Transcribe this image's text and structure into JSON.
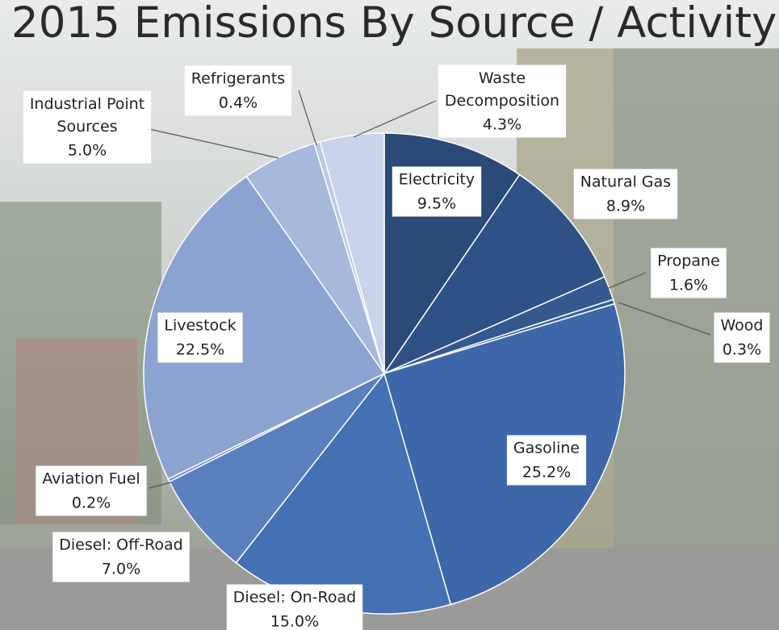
{
  "chart_data": {
    "type": "pie",
    "title": "2015 Emissions By Source / Activity",
    "categories": [
      "Electricity",
      "Natural Gas",
      "Propane",
      "Wood",
      "Gasoline",
      "Diesel: On-Road",
      "Diesel: Off-Road",
      "Aviation Fuel",
      "Livestock",
      "Industrial Point Sources",
      "Refrigerants",
      "Waste Decomposition"
    ],
    "values": [
      9.5,
      8.9,
      1.6,
      0.3,
      25.2,
      15.0,
      7.0,
      0.2,
      22.5,
      5.0,
      0.4,
      4.3
    ],
    "value_labels": [
      "9.5%",
      "8.9%",
      "1.6%",
      "0.3%",
      "25.2%",
      "15.0%",
      "7.0%",
      "0.2%",
      "22.5%",
      "5.0%",
      "0.4%",
      "4.3%"
    ],
    "colors": [
      "#2a4a78",
      "#2f5286",
      "#34598f",
      "#375e96",
      "#3d67a8",
      "#4470b4",
      "#5a80bf",
      "#6c8dc6",
      "#8aa3d1",
      "#a6b8dc",
      "#bcc9e4",
      "#c9d3ea"
    ]
  }
}
